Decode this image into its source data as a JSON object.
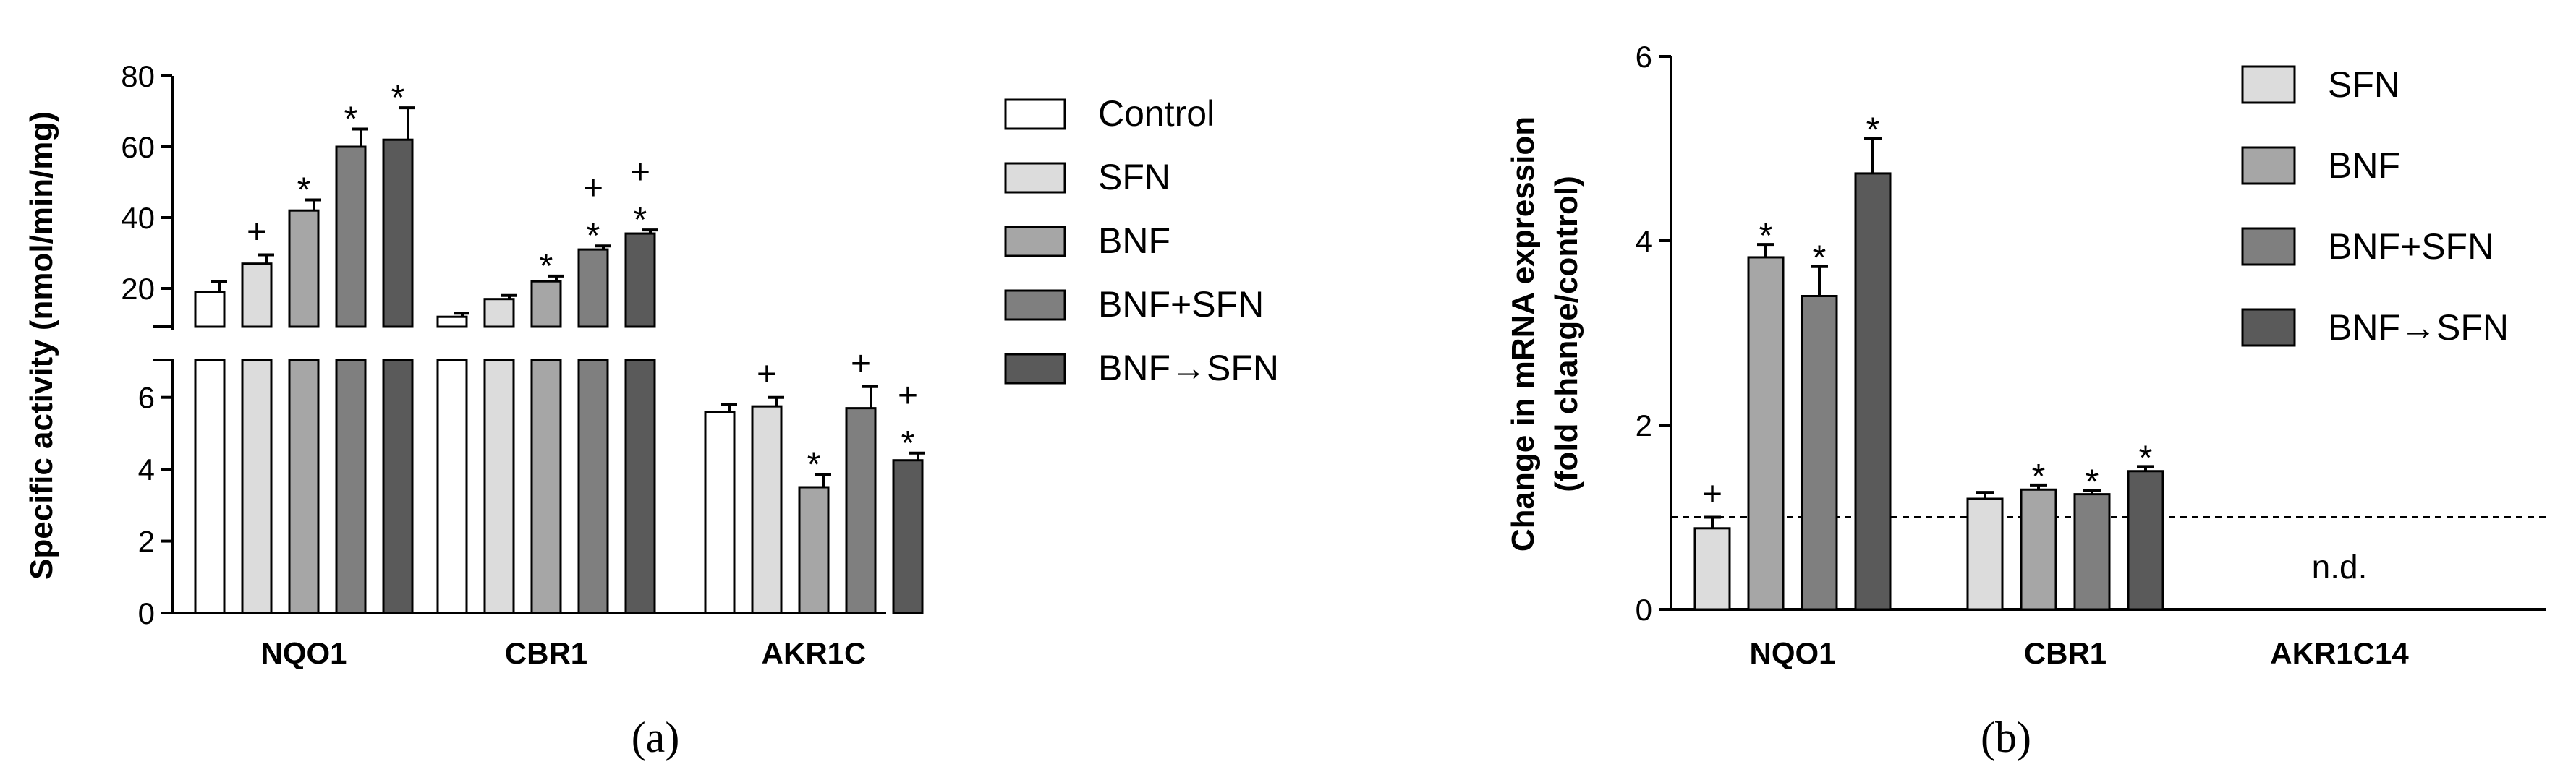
{
  "colors": {
    "Control": "#ffffff",
    "SFN": "#dcdcdc",
    "BNF": "#a6a6a6",
    "BNF+SFN": "#7f7f7f",
    "BNF→SFN": "#5a5a5a",
    "axis": "#000000"
  },
  "chart_data": [
    {
      "type": "bar",
      "panel_label": "(a)",
      "ylabel": "Specific activity (nmol/min/mg)",
      "xlabel": "",
      "categories": [
        "NQO1",
        "CBR1",
        "AKR1C"
      ],
      "ylim_upper": [
        10,
        80
      ],
      "ylim_lower": [
        0,
        7
      ],
      "y_ticks_upper": [
        "20",
        "40",
        "60",
        "80"
      ],
      "y_ticks_lower": [
        "0",
        "2",
        "4",
        "6"
      ],
      "broken_axis": true,
      "legend_position": "right",
      "series": [
        {
          "name": "Control",
          "values": [
            19,
            12,
            5.6
          ],
          "errors": [
            3,
            1,
            0.2
          ],
          "marks": [
            "",
            "",
            ""
          ]
        },
        {
          "name": "SFN",
          "values": [
            27,
            17,
            5.75
          ],
          "errors": [
            2.5,
            1,
            0.25
          ],
          "marks": [
            "+",
            "",
            "+"
          ]
        },
        {
          "name": "BNF",
          "values": [
            42,
            22,
            3.5
          ],
          "errors": [
            3,
            1.5,
            0.35
          ],
          "marks": [
            "*",
            "*",
            "*"
          ]
        },
        {
          "name": "BNF+SFN",
          "values": [
            60,
            31,
            5.7
          ],
          "errors": [
            5,
            1,
            0.6
          ],
          "marks": [
            "*",
            "+\n*",
            "+"
          ]
        },
        {
          "name": "BNF→SFN",
          "values": [
            62,
            35.5,
            4.25
          ],
          "errors": [
            9,
            1,
            0.2
          ],
          "marks": [
            "*",
            "+\n*",
            "+\n*"
          ]
        }
      ]
    },
    {
      "type": "bar",
      "panel_label": "(b)",
      "ylabel": "Change in mRNA expression (fold change/control)",
      "ylabel_line1": "Change in mRNA expression",
      "ylabel_line2": "(fold change/control)",
      "xlabel": "",
      "categories": [
        "NQO1",
        "CBR1",
        "AKR1C14"
      ],
      "ylim": [
        0,
        6
      ],
      "y_ticks": [
        "0",
        "2",
        "4",
        "6"
      ],
      "reference_line": 1,
      "legend_position": "top-right",
      "annotation": "n.d.",
      "series": [
        {
          "name": "SFN",
          "values": [
            0.88,
            1.2,
            null
          ],
          "errors": [
            0.12,
            0.07,
            null
          ],
          "marks": [
            "+",
            "",
            ""
          ]
        },
        {
          "name": "BNF",
          "values": [
            3.82,
            1.3,
            null
          ],
          "errors": [
            0.14,
            0.05,
            null
          ],
          "marks": [
            "*",
            "*",
            ""
          ]
        },
        {
          "name": "BNF+SFN",
          "values": [
            3.4,
            1.25,
            null
          ],
          "errors": [
            0.32,
            0.04,
            null
          ],
          "marks": [
            "*",
            "*",
            ""
          ]
        },
        {
          "name": "BNF→SFN",
          "values": [
            4.73,
            1.5,
            null
          ],
          "errors": [
            0.38,
            0.05,
            null
          ],
          "marks": [
            "*",
            "*",
            ""
          ]
        }
      ]
    }
  ]
}
